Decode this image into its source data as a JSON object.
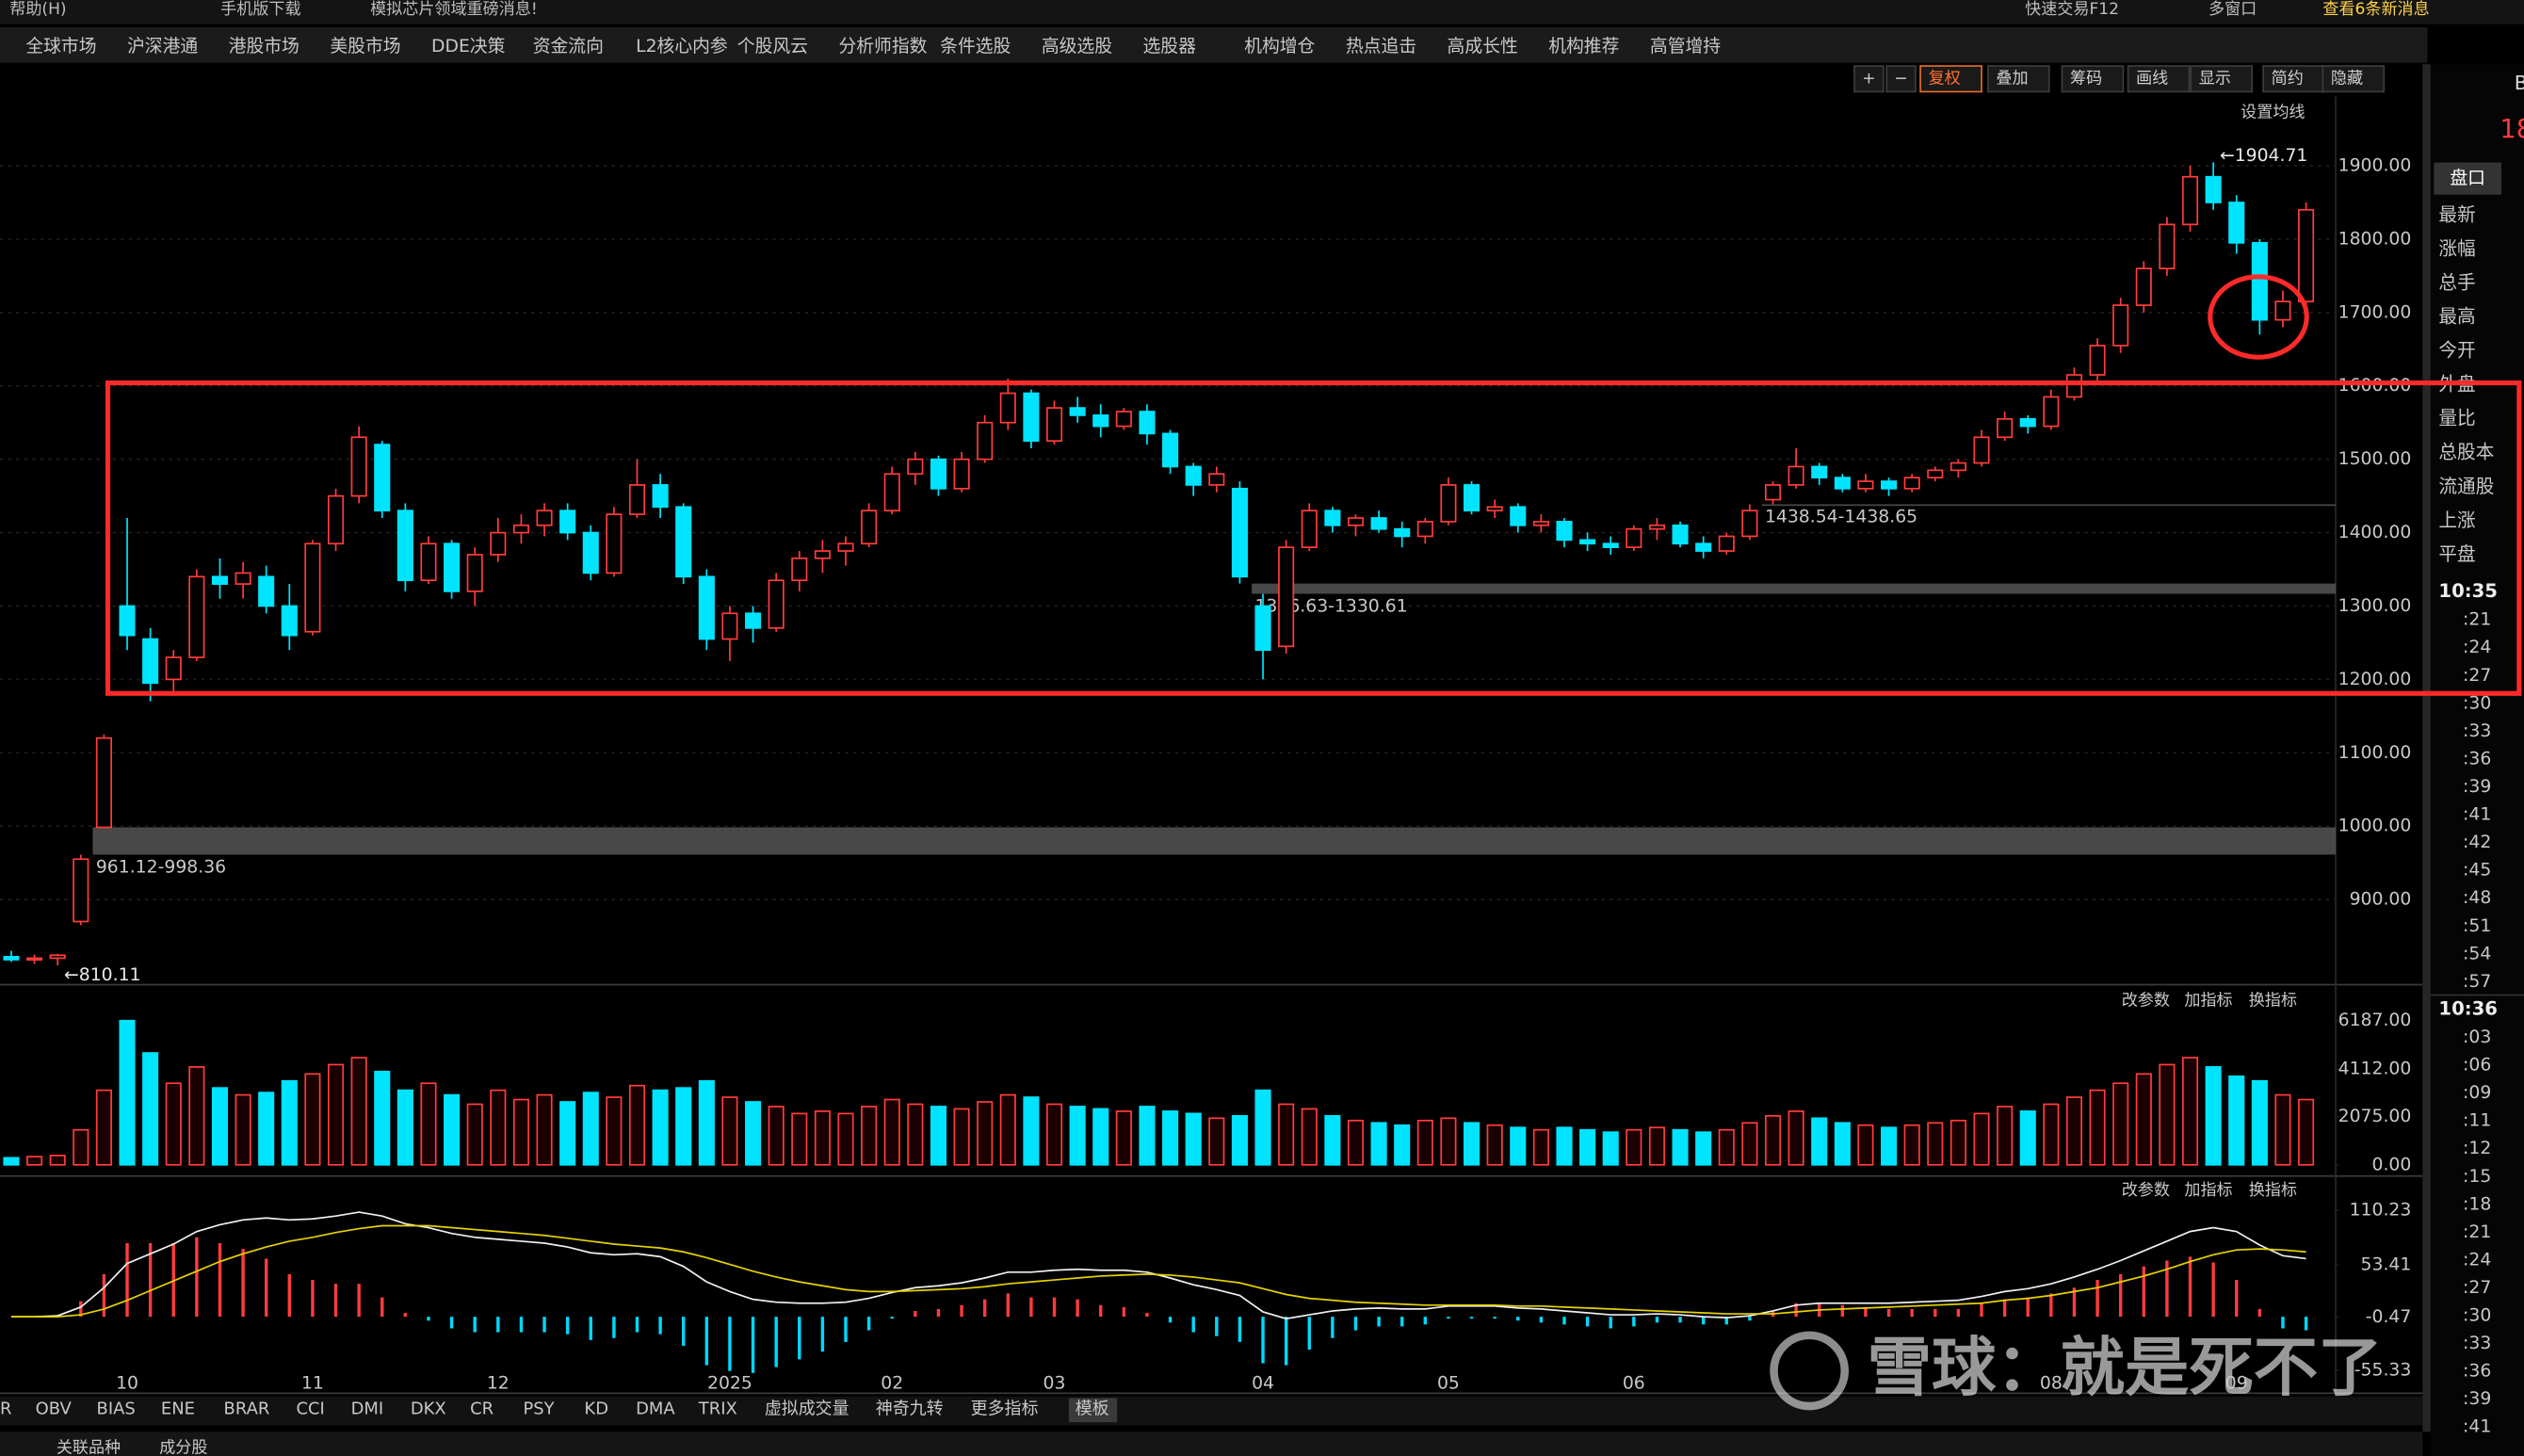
{
  "ui": {
    "top_bar": [
      "帮助(H)",
      "手机版下载",
      "模拟芯片领域重磅消息!",
      "快速交易F12",
      "多窗口",
      "查看6条新消息"
    ],
    "menu": [
      "全球市场",
      "沪深港通",
      "港股市场",
      "美股市场",
      "DDE决策",
      "资金流向",
      "L2核心内参",
      "个股风云",
      "分析师指数",
      "条件选股",
      "高级选股",
      "选股器",
      "机构增仓",
      "热点追击",
      "高成长性",
      "机构推荐",
      "高管增持"
    ],
    "toolbar": [
      "+",
      "−",
      "复权",
      "叠加",
      "筹码",
      "画线",
      "显示",
      "简约",
      "隐藏"
    ],
    "ma_setting": "设置均线",
    "indicator_actions": [
      "改参数",
      "加指标",
      "换指标"
    ],
    "indicator_tabs": [
      "R",
      "OBV",
      "BIAS",
      "ENE",
      "BRAR",
      "CCI",
      "DMI",
      "DKX",
      "CR",
      "PSY",
      "KD",
      "DMA",
      "TRIX",
      "虚拟成交量",
      "神奇九转",
      "更多指标",
      "模板"
    ],
    "bottom_tabs": [
      "关联品种",
      "成分股"
    ],
    "panel_top": [
      "B",
      "18"
    ],
    "panel_tab": "盘口",
    "quote_fields": [
      "最新",
      "涨幅",
      "总手",
      "最高",
      "今开",
      "外盘",
      "量比",
      "总股本",
      "流通股",
      "上涨",
      "平盘"
    ],
    "ticks_time": [
      "10:35",
      ":21",
      ":24",
      ":27",
      ":30",
      ":33",
      ":36",
      ":39",
      ":41",
      ":42",
      ":45",
      ":48",
      ":51",
      ":54",
      ":57",
      "10:36",
      ":03",
      ":06",
      ":09",
      ":11",
      ":12",
      ":15",
      ":18",
      ":21",
      ":24",
      ":27",
      ":30",
      ":33",
      ":36",
      ":39",
      ":41"
    ],
    "watermark": "雪球：就是死不了"
  },
  "chart_data": [
    {
      "type": "candlestick",
      "up_color": "#ff3c3c",
      "down_color": "#00e4ff",
      "grid": true,
      "categories": [
        null,
        null,
        null,
        null,
        null,
        "10",
        null,
        null,
        null,
        null,
        null,
        null,
        null,
        "11",
        null,
        null,
        null,
        null,
        null,
        null,
        null,
        "12",
        null,
        null,
        null,
        null,
        null,
        null,
        null,
        null,
        null,
        "2025",
        null,
        null,
        null,
        null,
        null,
        null,
        "02",
        null,
        null,
        null,
        null,
        null,
        null,
        "03",
        null,
        null,
        null,
        null,
        null,
        null,
        null,
        null,
        "04",
        null,
        null,
        null,
        null,
        null,
        null,
        null,
        "05",
        null,
        null,
        null,
        null,
        null,
        null,
        null,
        "06",
        null,
        null,
        null,
        null,
        null,
        null,
        null,
        null,
        null,
        null,
        null,
        null,
        null,
        null,
        null,
        null,
        null,
        "08",
        null,
        null,
        null,
        null,
        null,
        null,
        null,
        "09",
        null,
        null,
        null
      ],
      "ohlc": [
        [
          822,
          830,
          815,
          818
        ],
        [
          818,
          825,
          812,
          820
        ],
        [
          820,
          826,
          810.11,
          824
        ],
        [
          870,
          961.12,
          865,
          955
        ],
        [
          998.36,
          1125,
          998.36,
          1120
        ],
        [
          1300,
          1420,
          1240,
          1260
        ],
        [
          1255,
          1270,
          1170,
          1195
        ],
        [
          1200,
          1240,
          1180,
          1230
        ],
        [
          1230,
          1350,
          1225,
          1340
        ],
        [
          1340,
          1365,
          1310,
          1330
        ],
        [
          1330,
          1360,
          1310,
          1345
        ],
        [
          1340,
          1355,
          1290,
          1300
        ],
        [
          1300,
          1330,
          1240,
          1260
        ],
        [
          1265,
          1390,
          1260,
          1385
        ],
        [
          1385,
          1460,
          1375,
          1450
        ],
        [
          1450,
          1545,
          1440,
          1530
        ],
        [
          1520,
          1525,
          1420,
          1430
        ],
        [
          1430,
          1440,
          1320,
          1335
        ],
        [
          1335,
          1395,
          1330,
          1385
        ],
        [
          1385,
          1390,
          1310,
          1320
        ],
        [
          1320,
          1380,
          1300,
          1370
        ],
        [
          1370,
          1420,
          1360,
          1400
        ],
        [
          1400,
          1425,
          1385,
          1410
        ],
        [
          1410,
          1440,
          1395,
          1430
        ],
        [
          1430,
          1440,
          1390,
          1400
        ],
        [
          1400,
          1410,
          1335,
          1345
        ],
        [
          1345,
          1435,
          1340,
          1425
        ],
        [
          1425,
          1500,
          1420,
          1465
        ],
        [
          1465,
          1480,
          1420,
          1435
        ],
        [
          1435,
          1440,
          1330,
          1340
        ],
        [
          1340,
          1350,
          1240,
          1255
        ],
        [
          1255,
          1300,
          1225,
          1290
        ],
        [
          1290,
          1300,
          1250,
          1270
        ],
        [
          1270,
          1345,
          1265,
          1335
        ],
        [
          1335,
          1375,
          1320,
          1365
        ],
        [
          1365,
          1390,
          1345,
          1375
        ],
        [
          1375,
          1395,
          1355,
          1385
        ],
        [
          1385,
          1440,
          1380,
          1430
        ],
        [
          1430,
          1490,
          1425,
          1480
        ],
        [
          1480,
          1510,
          1465,
          1500
        ],
        [
          1500,
          1505,
          1450,
          1460
        ],
        [
          1460,
          1510,
          1455,
          1500
        ],
        [
          1500,
          1560,
          1495,
          1550
        ],
        [
          1550,
          1610,
          1540,
          1590
        ],
        [
          1590,
          1595,
          1515,
          1525
        ],
        [
          1525,
          1580,
          1520,
          1570
        ],
        [
          1570,
          1585,
          1550,
          1560
        ],
        [
          1560,
          1575,
          1530,
          1545
        ],
        [
          1545,
          1570,
          1540,
          1565
        ],
        [
          1565,
          1575,
          1520,
          1535
        ],
        [
          1535,
          1540,
          1480,
          1490
        ],
        [
          1490,
          1495,
          1450,
          1465
        ],
        [
          1465,
          1490,
          1455,
          1480
        ],
        [
          1460,
          1470,
          1330.61,
          1340
        ],
        [
          1300,
          1316.63,
          1200,
          1240
        ],
        [
          1245,
          1390,
          1235,
          1380
        ],
        [
          1380,
          1440,
          1375,
          1430
        ],
        [
          1430,
          1435,
          1400,
          1410
        ],
        [
          1410,
          1425,
          1395,
          1420
        ],
        [
          1420,
          1430,
          1400,
          1405
        ],
        [
          1405,
          1415,
          1380,
          1395
        ],
        [
          1395,
          1420,
          1385,
          1415
        ],
        [
          1415,
          1475,
          1410,
          1465
        ],
        [
          1465,
          1470,
          1425,
          1430
        ],
        [
          1430,
          1445,
          1420,
          1435
        ],
        [
          1435,
          1440,
          1400,
          1410
        ],
        [
          1410,
          1425,
          1400,
          1415
        ],
        [
          1415,
          1420,
          1380,
          1390
        ],
        [
          1390,
          1400,
          1375,
          1385
        ],
        [
          1385,
          1395,
          1370,
          1380
        ],
        [
          1380,
          1410,
          1375,
          1405
        ],
        [
          1405,
          1420,
          1390,
          1410
        ],
        [
          1410,
          1415,
          1380,
          1385
        ],
        [
          1385,
          1395,
          1365,
          1375
        ],
        [
          1375,
          1400,
          1370,
          1395
        ],
        [
          1395,
          1438.54,
          1390,
          1430
        ],
        [
          1445,
          1470,
          1438.65,
          1465
        ],
        [
          1465,
          1515,
          1460,
          1490
        ],
        [
          1490,
          1495,
          1465,
          1475
        ],
        [
          1475,
          1480,
          1455,
          1460
        ],
        [
          1460,
          1480,
          1455,
          1470
        ],
        [
          1470,
          1475,
          1450,
          1460
        ],
        [
          1460,
          1480,
          1455,
          1475
        ],
        [
          1475,
          1490,
          1470,
          1485
        ],
        [
          1485,
          1500,
          1475,
          1495
        ],
        [
          1495,
          1540,
          1490,
          1530
        ],
        [
          1530,
          1565,
          1525,
          1555
        ],
        [
          1555,
          1560,
          1535,
          1545
        ],
        [
          1545,
          1595,
          1540,
          1585
        ],
        [
          1585,
          1625,
          1580,
          1615
        ],
        [
          1615,
          1665,
          1605,
          1655
        ],
        [
          1655,
          1720,
          1645,
          1710
        ],
        [
          1710,
          1770,
          1700,
          1760
        ],
        [
          1760,
          1830,
          1750,
          1820
        ],
        [
          1820,
          1900,
          1810,
          1885
        ],
        [
          1885,
          1904.71,
          1840,
          1850
        ],
        [
          1850,
          1860,
          1780,
          1795
        ],
        [
          1795,
          1800,
          1670,
          1690
        ],
        [
          1690,
          1730,
          1680,
          1715
        ],
        [
          1715,
          1850,
          1710,
          1840
        ]
      ],
      "ylim": [
        784,
        1990
      ],
      "yticks": [
        {
          "value": 900,
          "label": "900.00"
        },
        {
          "value": 1000,
          "label": "1000.00"
        },
        {
          "value": 1100,
          "label": "1100.00"
        },
        {
          "value": 1200,
          "label": "1200.00"
        },
        {
          "value": 1300,
          "label": "1300.00"
        },
        {
          "value": 1400,
          "label": "1400.00"
        },
        {
          "value": 1500,
          "label": "1500.00"
        },
        {
          "value": 1600,
          "label": "1600.00"
        },
        {
          "value": 1700,
          "label": "1700.00"
        },
        {
          "value": 1800,
          "label": "1800.00"
        },
        {
          "value": 1900,
          "label": "1900.00"
        }
      ],
      "gaps": [
        {
          "low": 961.12,
          "high": 998.36,
          "label": "961.12-998.36"
        },
        {
          "low": 1316.63,
          "high": 1330.61,
          "label": "1316.63-1330.61"
        },
        {
          "low": 1438.54,
          "high": 1438.65,
          "label": "1438.54-1438.65"
        }
      ],
      "extremes": [
        {
          "text": "←1904.71",
          "value": 1904.71
        },
        {
          "text": "←810.11",
          "value": 810.11
        }
      ]
    },
    {
      "type": "bar",
      "values": [
        300,
        350,
        400,
        1500,
        3200,
        6187,
        4800,
        3500,
        4200,
        3300,
        3000,
        3100,
        3600,
        3900,
        4300,
        4600,
        4000,
        3200,
        3500,
        3000,
        2600,
        3200,
        2800,
        3000,
        2700,
        3100,
        2900,
        3400,
        3200,
        3300,
        3600,
        2900,
        2700,
        2500,
        2200,
        2300,
        2200,
        2500,
        2800,
        2600,
        2500,
        2400,
        2700,
        3000,
        2900,
        2600,
        2500,
        2400,
        2300,
        2500,
        2300,
        2200,
        2000,
        2100,
        3200,
        2600,
        2400,
        2100,
        1900,
        1800,
        1700,
        1900,
        2000,
        1800,
        1700,
        1600,
        1500,
        1600,
        1500,
        1400,
        1500,
        1600,
        1500,
        1400,
        1500,
        1800,
        2100,
        2300,
        2000,
        1800,
        1700,
        1600,
        1700,
        1800,
        1900,
        2200,
        2500,
        2300,
        2600,
        2900,
        3200,
        3500,
        3900,
        4300,
        4600,
        4200,
        3800,
        3600,
        3000,
        2800
      ],
      "ylim": [
        0,
        6450
      ],
      "yticks": [
        {
          "value": 0,
          "label": "0.00"
        },
        {
          "value": 2075,
          "label": "2075.00"
        },
        {
          "value": 4112,
          "label": "4112.00"
        },
        {
          "value": 6187,
          "label": "6187.00"
        }
      ]
    },
    {
      "type": "macd",
      "dif_color": "#f0f0f0",
      "dea_color": "#e6d200",
      "up_color": "#ff3c3c",
      "down_color": "#00d8ff",
      "dif": [
        0,
        0,
        1,
        10,
        30,
        55,
        65,
        75,
        88,
        95,
        100,
        102,
        100,
        101,
        104,
        108,
        104,
        96,
        92,
        86,
        82,
        80,
        78,
        76,
        72,
        66,
        64,
        65,
        62,
        52,
        36,
        26,
        18,
        15,
        14,
        14,
        15,
        19,
        25,
        30,
        32,
        35,
        40,
        46,
        46,
        48,
        49,
        48,
        48,
        46,
        40,
        33,
        28,
        22,
        5,
        -2,
        2,
        6,
        8,
        9,
        8,
        8,
        11,
        11,
        11,
        9,
        8,
        6,
        4,
        2,
        2,
        3,
        2,
        0,
        -1,
        1,
        6,
        12,
        14,
        14,
        14,
        14,
        15,
        16,
        17,
        21,
        26,
        29,
        34,
        41,
        49,
        58,
        68,
        78,
        88,
        92,
        88,
        74,
        63,
        60
      ],
      "dea": [
        0,
        0,
        0,
        2,
        8,
        17,
        27,
        37,
        47,
        57,
        65,
        72,
        78,
        82,
        87,
        91,
        94,
        94,
        94,
        92,
        90,
        88,
        86,
        84,
        81,
        78,
        75,
        73,
        71,
        67,
        61,
        54,
        47,
        41,
        36,
        32,
        28,
        26,
        26,
        27,
        28,
        29,
        31,
        34,
        36,
        38,
        40,
        42,
        43,
        44,
        43,
        41,
        38,
        35,
        29,
        23,
        19,
        17,
        15,
        14,
        13,
        12,
        12,
        12,
        12,
        11,
        11,
        10,
        9,
        8,
        7,
        6,
        5,
        4,
        3,
        3,
        3,
        5,
        7,
        8,
        9,
        10,
        11,
        12,
        13,
        14,
        17,
        19,
        22,
        26,
        30,
        36,
        42,
        49,
        57,
        64,
        69,
        70,
        69,
        67
      ],
      "hist": [
        0,
        0,
        2,
        16,
        44,
        76,
        76,
        76,
        82,
        76,
        70,
        60,
        44,
        38,
        34,
        34,
        20,
        4,
        -4,
        -12,
        -16,
        -16,
        -16,
        -16,
        -18,
        -24,
        -22,
        -16,
        -18,
        -30,
        -50,
        -56,
        -58,
        -52,
        -44,
        -36,
        -26,
        -14,
        -2,
        6,
        8,
        12,
        18,
        24,
        20,
        20,
        18,
        12,
        10,
        4,
        -6,
        -16,
        -20,
        -26,
        -48,
        -50,
        -34,
        -22,
        -14,
        -10,
        -10,
        -8,
        -2,
        -2,
        -2,
        -4,
        -6,
        -8,
        -10,
        -12,
        -10,
        -6,
        -6,
        -8,
        -8,
        -4,
        6,
        14,
        14,
        12,
        10,
        8,
        8,
        8,
        8,
        14,
        18,
        20,
        24,
        30,
        38,
        44,
        52,
        58,
        62,
        56,
        38,
        8,
        -12,
        -14
      ],
      "ylim": [
        -79,
        122
      ],
      "yticks": [
        110.23,
        53.41,
        -0.47,
        -55.33
      ]
    }
  ]
}
